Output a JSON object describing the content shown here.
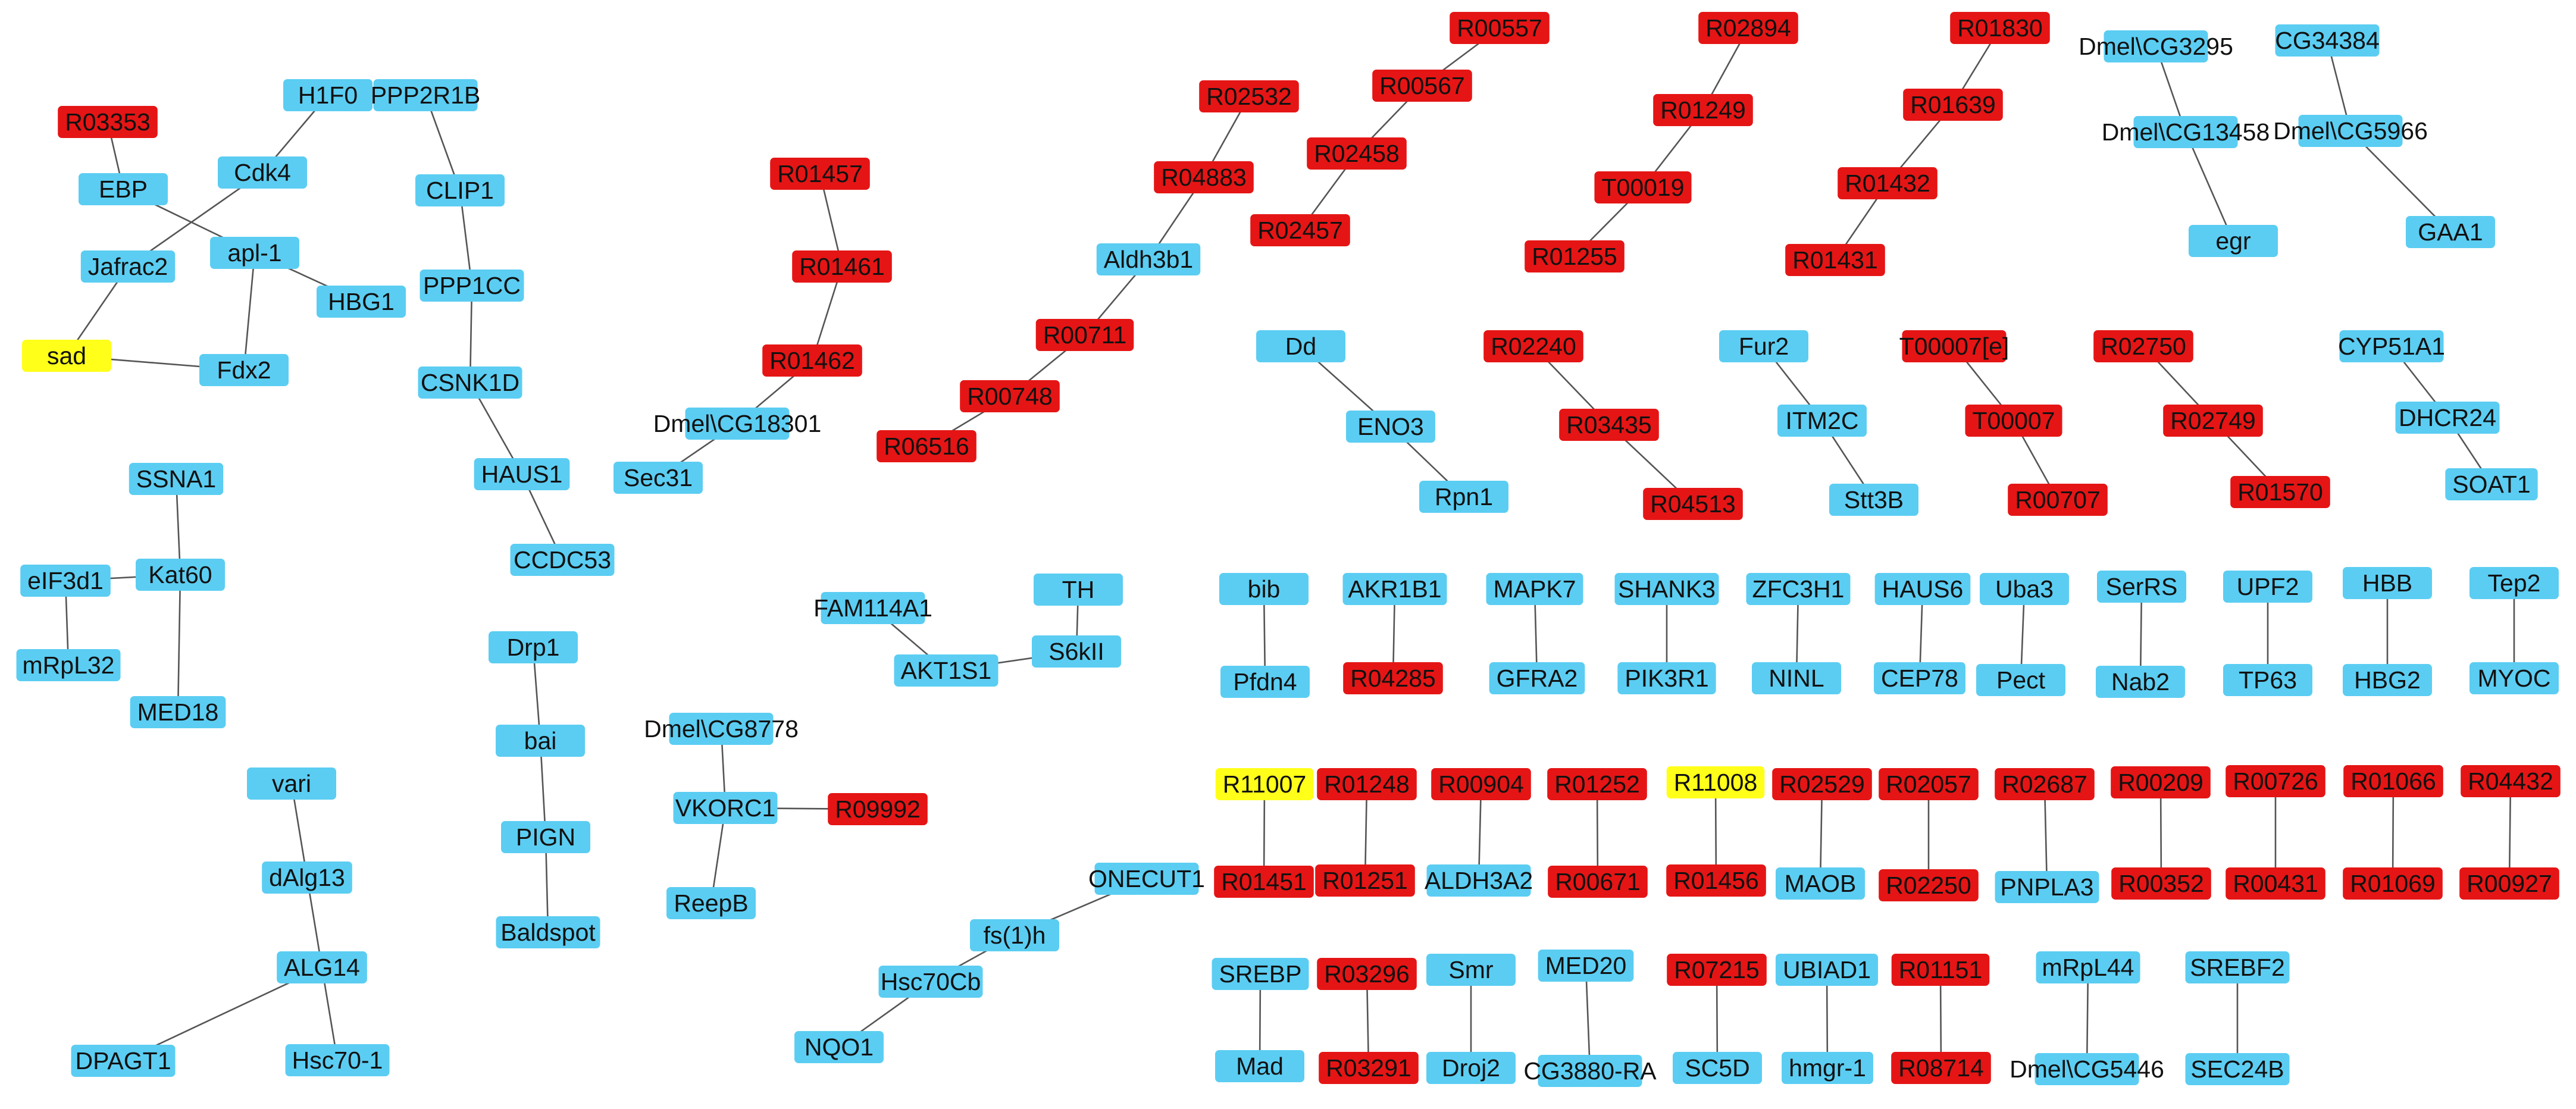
{
  "colors": {
    "gene": "#5bcdf2",
    "reaction": "#e51515",
    "highlight": "#ffff1a",
    "edge": "#555555",
    "text": "#111111"
  },
  "nodes": [
    {
      "id": "n1",
      "label": "R03353",
      "type": "reaction"
    },
    {
      "id": "n2",
      "label": "H1F0",
      "type": "gene"
    },
    {
      "id": "n3",
      "label": "PPP2R1B",
      "type": "gene"
    },
    {
      "id": "n4",
      "label": "EBP",
      "type": "gene"
    },
    {
      "id": "n5",
      "label": "Cdk4",
      "type": "gene"
    },
    {
      "id": "n6",
      "label": "CLIP1",
      "type": "gene"
    },
    {
      "id": "n7",
      "label": "apl-1",
      "type": "gene"
    },
    {
      "id": "n8",
      "label": "Jafrac2",
      "type": "gene"
    },
    {
      "id": "n9",
      "label": "HBG1",
      "type": "gene"
    },
    {
      "id": "n10",
      "label": "PPP1CC",
      "type": "gene"
    },
    {
      "id": "n11",
      "label": "sad",
      "type": "highlight"
    },
    {
      "id": "n12",
      "label": "Fdx2",
      "type": "gene"
    },
    {
      "id": "n13",
      "label": "CSNK1D",
      "type": "gene"
    },
    {
      "id": "n14",
      "label": "HAUS1",
      "type": "gene"
    },
    {
      "id": "n15",
      "label": "CCDC53",
      "type": "gene"
    },
    {
      "id": "n16",
      "label": "SSNA1",
      "type": "gene"
    },
    {
      "id": "n17",
      "label": "eIF3d1",
      "type": "gene"
    },
    {
      "id": "n18",
      "label": "Kat60",
      "type": "gene"
    },
    {
      "id": "n19",
      "label": "mRpL32",
      "type": "gene"
    },
    {
      "id": "n20",
      "label": "MED18",
      "type": "gene"
    },
    {
      "id": "n21",
      "label": "vari",
      "type": "gene"
    },
    {
      "id": "n22",
      "label": "dAlg13",
      "type": "gene"
    },
    {
      "id": "n23",
      "label": "ALG14",
      "type": "gene"
    },
    {
      "id": "n24",
      "label": "DPAGT1",
      "type": "gene"
    },
    {
      "id": "n25",
      "label": "Hsc70-1",
      "type": "gene"
    },
    {
      "id": "n26",
      "label": "Drp1",
      "type": "gene"
    },
    {
      "id": "n27",
      "label": "bai",
      "type": "gene"
    },
    {
      "id": "n28",
      "label": "PIGN",
      "type": "gene"
    },
    {
      "id": "n29",
      "label": "Baldspot",
      "type": "gene"
    },
    {
      "id": "n30",
      "label": "R01457",
      "type": "reaction"
    },
    {
      "id": "n31",
      "label": "R01461",
      "type": "reaction"
    },
    {
      "id": "n32",
      "label": "R01462",
      "type": "reaction"
    },
    {
      "id": "n33",
      "label": "Dmel\\CG18301",
      "type": "gene"
    },
    {
      "id": "n34",
      "label": "Sec31",
      "type": "gene"
    },
    {
      "id": "n35",
      "label": "R02532",
      "type": "reaction"
    },
    {
      "id": "n36",
      "label": "R04883",
      "type": "reaction"
    },
    {
      "id": "n37",
      "label": "Aldh3b1",
      "type": "gene"
    },
    {
      "id": "n38",
      "label": "R00711",
      "type": "reaction"
    },
    {
      "id": "n39",
      "label": "R00748",
      "type": "reaction"
    },
    {
      "id": "n40",
      "label": "R06516",
      "type": "reaction"
    },
    {
      "id": "n41",
      "label": "R00557",
      "type": "reaction"
    },
    {
      "id": "n42",
      "label": "R00567",
      "type": "reaction"
    },
    {
      "id": "n43",
      "label": "R02458",
      "type": "reaction"
    },
    {
      "id": "n44",
      "label": "R02457",
      "type": "reaction"
    },
    {
      "id": "n45",
      "label": "R02894",
      "type": "reaction"
    },
    {
      "id": "n46",
      "label": "R01249",
      "type": "reaction"
    },
    {
      "id": "n47",
      "label": "T00019",
      "type": "reaction"
    },
    {
      "id": "n48",
      "label": "R01255",
      "type": "reaction"
    },
    {
      "id": "n49",
      "label": "R01830",
      "type": "reaction"
    },
    {
      "id": "n50",
      "label": "R01639",
      "type": "reaction"
    },
    {
      "id": "n51",
      "label": "R01432",
      "type": "reaction"
    },
    {
      "id": "n52",
      "label": "R01431",
      "type": "reaction"
    },
    {
      "id": "n53",
      "label": "Dmel\\CG3295",
      "type": "gene"
    },
    {
      "id": "n54",
      "label": "Dmel\\CG13458",
      "type": "gene"
    },
    {
      "id": "n55",
      "label": "egr",
      "type": "gene"
    },
    {
      "id": "n56",
      "label": "CG34384",
      "type": "gene"
    },
    {
      "id": "n57",
      "label": "Dmel\\CG5966",
      "type": "gene"
    },
    {
      "id": "n58",
      "label": "GAA1",
      "type": "gene"
    },
    {
      "id": "n59",
      "label": "Dd",
      "type": "gene"
    },
    {
      "id": "n60",
      "label": "ENO3",
      "type": "gene"
    },
    {
      "id": "n61",
      "label": "Rpn1",
      "type": "gene"
    },
    {
      "id": "n62",
      "label": "R02240",
      "type": "reaction"
    },
    {
      "id": "n63",
      "label": "R03435",
      "type": "reaction"
    },
    {
      "id": "n64",
      "label": "R04513",
      "type": "reaction"
    },
    {
      "id": "n65",
      "label": "Fur2",
      "type": "gene"
    },
    {
      "id": "n66",
      "label": "ITM2C",
      "type": "gene"
    },
    {
      "id": "n67",
      "label": "Stt3B",
      "type": "gene"
    },
    {
      "id": "n68",
      "label": "T00007[e]",
      "type": "reaction"
    },
    {
      "id": "n69",
      "label": "T00007",
      "type": "reaction"
    },
    {
      "id": "n70",
      "label": "R00707",
      "type": "reaction"
    },
    {
      "id": "n71",
      "label": "R02750",
      "type": "reaction"
    },
    {
      "id": "n72",
      "label": "R02749",
      "type": "reaction"
    },
    {
      "id": "n73",
      "label": "R01570",
      "type": "reaction"
    },
    {
      "id": "n74",
      "label": "CYP51A1",
      "type": "gene"
    },
    {
      "id": "n75",
      "label": "DHCR24",
      "type": "gene"
    },
    {
      "id": "n76",
      "label": "SOAT1",
      "type": "gene"
    },
    {
      "id": "n77",
      "label": "FAM114A1",
      "type": "gene"
    },
    {
      "id": "n78",
      "label": "TH",
      "type": "gene"
    },
    {
      "id": "n79",
      "label": "AKT1S1",
      "type": "gene"
    },
    {
      "id": "n80",
      "label": "S6kII",
      "type": "gene"
    },
    {
      "id": "n81",
      "label": "Dmel\\CG8778",
      "type": "gene"
    },
    {
      "id": "n82",
      "label": "VKORC1",
      "type": "gene"
    },
    {
      "id": "n83",
      "label": "R09992",
      "type": "reaction"
    },
    {
      "id": "n84",
      "label": "ReepB",
      "type": "gene"
    },
    {
      "id": "n85",
      "label": "ONECUT1",
      "type": "gene"
    },
    {
      "id": "n86",
      "label": "fs(1)h",
      "type": "gene"
    },
    {
      "id": "n87",
      "label": "Hsc70Cb",
      "type": "gene"
    },
    {
      "id": "n88",
      "label": "NQO1",
      "type": "gene"
    },
    {
      "id": "n89",
      "label": "bib",
      "type": "gene"
    },
    {
      "id": "n90",
      "label": "Pfdn4",
      "type": "gene"
    },
    {
      "id": "n91",
      "label": "AKR1B1",
      "type": "gene"
    },
    {
      "id": "n92",
      "label": "R04285",
      "type": "reaction"
    },
    {
      "id": "n93",
      "label": "MAPK7",
      "type": "gene"
    },
    {
      "id": "n94",
      "label": "GFRA2",
      "type": "gene"
    },
    {
      "id": "n95",
      "label": "SHANK3",
      "type": "gene"
    },
    {
      "id": "n96",
      "label": "PIK3R1",
      "type": "gene"
    },
    {
      "id": "n97",
      "label": "ZFC3H1",
      "type": "gene"
    },
    {
      "id": "n98",
      "label": "NINL",
      "type": "gene"
    },
    {
      "id": "n99",
      "label": "HAUS6",
      "type": "gene"
    },
    {
      "id": "n100",
      "label": "CEP78",
      "type": "gene"
    },
    {
      "id": "n101",
      "label": "Uba3",
      "type": "gene"
    },
    {
      "id": "n102",
      "label": "Pect",
      "type": "gene"
    },
    {
      "id": "n103",
      "label": "SerRS",
      "type": "gene"
    },
    {
      "id": "n104",
      "label": "Nab2",
      "type": "gene"
    },
    {
      "id": "n105",
      "label": "UPF2",
      "type": "gene"
    },
    {
      "id": "n106",
      "label": "TP63",
      "type": "gene"
    },
    {
      "id": "n107",
      "label": "HBB",
      "type": "gene"
    },
    {
      "id": "n108",
      "label": "HBG2",
      "type": "gene"
    },
    {
      "id": "n109",
      "label": "Tep2",
      "type": "gene"
    },
    {
      "id": "n110",
      "label": "MYOC",
      "type": "gene"
    },
    {
      "id": "n111",
      "label": "R11007",
      "type": "highlight"
    },
    {
      "id": "n112",
      "label": "R01451",
      "type": "reaction"
    },
    {
      "id": "n113",
      "label": "R01248",
      "type": "reaction"
    },
    {
      "id": "n114",
      "label": "R01251",
      "type": "reaction"
    },
    {
      "id": "n115",
      "label": "R00904",
      "type": "reaction"
    },
    {
      "id": "n116",
      "label": "ALDH3A2",
      "type": "gene"
    },
    {
      "id": "n117",
      "label": "R01252",
      "type": "reaction"
    },
    {
      "id": "n118",
      "label": "R00671",
      "type": "reaction"
    },
    {
      "id": "n119",
      "label": "R11008",
      "type": "highlight"
    },
    {
      "id": "n120",
      "label": "R01456",
      "type": "reaction"
    },
    {
      "id": "n121",
      "label": "R02529",
      "type": "reaction"
    },
    {
      "id": "n122",
      "label": "MAOB",
      "type": "gene"
    },
    {
      "id": "n123",
      "label": "R02057",
      "type": "reaction"
    },
    {
      "id": "n124",
      "label": "R02250",
      "type": "reaction"
    },
    {
      "id": "n125",
      "label": "R02687",
      "type": "reaction"
    },
    {
      "id": "n126",
      "label": "PNPLA3",
      "type": "gene"
    },
    {
      "id": "n127",
      "label": "R00209",
      "type": "reaction"
    },
    {
      "id": "n128",
      "label": "R00352",
      "type": "reaction"
    },
    {
      "id": "n129",
      "label": "R00726",
      "type": "reaction"
    },
    {
      "id": "n130",
      "label": "R00431",
      "type": "reaction"
    },
    {
      "id": "n131",
      "label": "R01066",
      "type": "reaction"
    },
    {
      "id": "n132",
      "label": "R01069",
      "type": "reaction"
    },
    {
      "id": "n133",
      "label": "R04432",
      "type": "reaction"
    },
    {
      "id": "n134",
      "label": "R00927",
      "type": "reaction"
    },
    {
      "id": "n135",
      "label": "SREBP",
      "type": "gene"
    },
    {
      "id": "n136",
      "label": "Mad",
      "type": "gene"
    },
    {
      "id": "n137",
      "label": "R03296",
      "type": "reaction"
    },
    {
      "id": "n138",
      "label": "R03291",
      "type": "reaction"
    },
    {
      "id": "n139",
      "label": "Smr",
      "type": "gene"
    },
    {
      "id": "n140",
      "label": "Droj2",
      "type": "gene"
    },
    {
      "id": "n141",
      "label": "MED20",
      "type": "gene"
    },
    {
      "id": "n142",
      "label": "CG3880-RA",
      "type": "gene"
    },
    {
      "id": "n143",
      "label": "R07215",
      "type": "reaction"
    },
    {
      "id": "n144",
      "label": "SC5D",
      "type": "gene"
    },
    {
      "id": "n145",
      "label": "UBIAD1",
      "type": "gene"
    },
    {
      "id": "n146",
      "label": "hmgr-1",
      "type": "gene"
    },
    {
      "id": "n147",
      "label": "R01151",
      "type": "reaction"
    },
    {
      "id": "n148",
      "label": "R08714",
      "type": "reaction"
    },
    {
      "id": "n149",
      "label": "mRpL44",
      "type": "gene"
    },
    {
      "id": "n150",
      "label": "Dmel\\CG5446",
      "type": "gene"
    },
    {
      "id": "n151",
      "label": "SREBF2",
      "type": "gene"
    },
    {
      "id": "n152",
      "label": "SEC24B",
      "type": "gene"
    }
  ],
  "edges": [
    [
      "n1",
      "n4"
    ],
    [
      "n2",
      "n5"
    ],
    [
      "n5",
      "n8"
    ],
    [
      "n4",
      "n7"
    ],
    [
      "n7",
      "n9"
    ],
    [
      "n7",
      "n12"
    ],
    [
      "n8",
      "n11"
    ],
    [
      "n11",
      "n12"
    ],
    [
      "n3",
      "n6"
    ],
    [
      "n6",
      "n10"
    ],
    [
      "n10",
      "n13"
    ],
    [
      "n13",
      "n14"
    ],
    [
      "n14",
      "n15"
    ],
    [
      "n16",
      "n18"
    ],
    [
      "n17",
      "n18"
    ],
    [
      "n17",
      "n19"
    ],
    [
      "n18",
      "n20"
    ],
    [
      "n21",
      "n22"
    ],
    [
      "n22",
      "n23"
    ],
    [
      "n23",
      "n24"
    ],
    [
      "n23",
      "n25"
    ],
    [
      "n26",
      "n27"
    ],
    [
      "n27",
      "n28"
    ],
    [
      "n28",
      "n29"
    ],
    [
      "n30",
      "n31"
    ],
    [
      "n31",
      "n32"
    ],
    [
      "n32",
      "n33"
    ],
    [
      "n33",
      "n34"
    ],
    [
      "n35",
      "n36"
    ],
    [
      "n36",
      "n37"
    ],
    [
      "n37",
      "n38"
    ],
    [
      "n38",
      "n39"
    ],
    [
      "n39",
      "n40"
    ],
    [
      "n41",
      "n42"
    ],
    [
      "n42",
      "n43"
    ],
    [
      "n43",
      "n44"
    ],
    [
      "n45",
      "n46"
    ],
    [
      "n46",
      "n47"
    ],
    [
      "n47",
      "n48"
    ],
    [
      "n49",
      "n50"
    ],
    [
      "n50",
      "n51"
    ],
    [
      "n51",
      "n52"
    ],
    [
      "n53",
      "n54"
    ],
    [
      "n54",
      "n55"
    ],
    [
      "n56",
      "n57"
    ],
    [
      "n57",
      "n58"
    ],
    [
      "n59",
      "n60"
    ],
    [
      "n60",
      "n61"
    ],
    [
      "n62",
      "n63"
    ],
    [
      "n63",
      "n64"
    ],
    [
      "n65",
      "n66"
    ],
    [
      "n66",
      "n67"
    ],
    [
      "n68",
      "n69"
    ],
    [
      "n69",
      "n70"
    ],
    [
      "n71",
      "n72"
    ],
    [
      "n72",
      "n73"
    ],
    [
      "n74",
      "n75"
    ],
    [
      "n75",
      "n76"
    ],
    [
      "n77",
      "n79"
    ],
    [
      "n78",
      "n80"
    ],
    [
      "n79",
      "n80"
    ],
    [
      "n81",
      "n82"
    ],
    [
      "n82",
      "n83"
    ],
    [
      "n82",
      "n84"
    ],
    [
      "n85",
      "n86"
    ],
    [
      "n86",
      "n87"
    ],
    [
      "n87",
      "n88"
    ],
    [
      "n89",
      "n90"
    ],
    [
      "n91",
      "n92"
    ],
    [
      "n93",
      "n94"
    ],
    [
      "n95",
      "n96"
    ],
    [
      "n97",
      "n98"
    ],
    [
      "n99",
      "n100"
    ],
    [
      "n101",
      "n102"
    ],
    [
      "n103",
      "n104"
    ],
    [
      "n105",
      "n106"
    ],
    [
      "n107",
      "n108"
    ],
    [
      "n109",
      "n110"
    ],
    [
      "n111",
      "n112"
    ],
    [
      "n113",
      "n114"
    ],
    [
      "n115",
      "n116"
    ],
    [
      "n117",
      "n118"
    ],
    [
      "n119",
      "n120"
    ],
    [
      "n121",
      "n122"
    ],
    [
      "n123",
      "n124"
    ],
    [
      "n125",
      "n126"
    ],
    [
      "n127",
      "n128"
    ],
    [
      "n129",
      "n130"
    ],
    [
      "n131",
      "n132"
    ],
    [
      "n133",
      "n134"
    ],
    [
      "n135",
      "n136"
    ],
    [
      "n137",
      "n138"
    ],
    [
      "n139",
      "n140"
    ],
    [
      "n141",
      "n142"
    ],
    [
      "n143",
      "n144"
    ],
    [
      "n145",
      "n146"
    ],
    [
      "n147",
      "n148"
    ],
    [
      "n149",
      "n150"
    ],
    [
      "n151",
      "n152"
    ]
  ]
}
